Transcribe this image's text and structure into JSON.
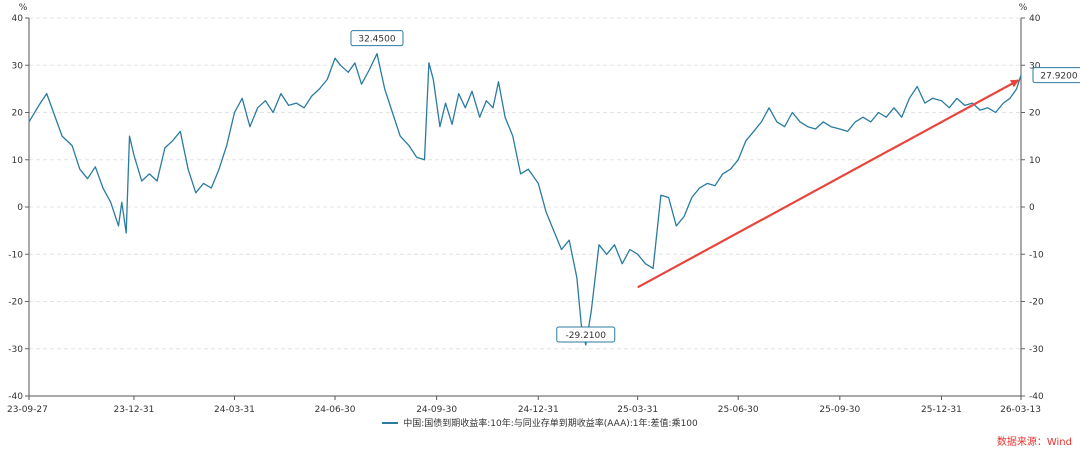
{
  "chart_data": {
    "type": "line",
    "title": "",
    "y_unit_label": "%",
    "ylim": [
      -40,
      40
    ],
    "yticks": [
      -40,
      -30,
      -20,
      -10,
      0,
      10,
      20,
      30,
      40
    ],
    "x_tick_labels": [
      "23-09-27",
      "23-12-31",
      "24-03-31",
      "24-06-30",
      "24-09-30",
      "24-12-31",
      "25-03-31",
      "25-06-30",
      "25-09-30",
      "25-12-31",
      "26-03-13"
    ],
    "x_ticks": [
      "2023-09-27",
      "2023-12-31",
      "2024-03-31",
      "2024-06-30",
      "2024-09-30",
      "2024-12-31",
      "2025-03-31",
      "2025-06-30",
      "2025-09-30",
      "2025-12-31",
      "2026-03-13"
    ],
    "grid": true,
    "legend_position": "bottom",
    "series": [
      {
        "name": "中国:国债到期收益率:10年:与同业存单到期收益率(AAA):1年:差值:乘100",
        "color": "#2a7ba0",
        "points": [
          [
            "2023-09-27",
            18.0
          ],
          [
            "2023-10-06",
            21.5
          ],
          [
            "2023-10-13",
            24.0
          ],
          [
            "2023-10-20",
            19.5
          ],
          [
            "2023-10-27",
            15.0
          ],
          [
            "2023-11-05",
            13.0
          ],
          [
            "2023-11-12",
            8.0
          ],
          [
            "2023-11-19",
            6.0
          ],
          [
            "2023-11-26",
            8.5
          ],
          [
            "2023-12-03",
            4.0
          ],
          [
            "2023-12-10",
            1.0
          ],
          [
            "2023-12-17",
            -4.0
          ],
          [
            "2023-12-20",
            1.0
          ],
          [
            "2023-12-24",
            -5.5
          ],
          [
            "2023-12-27",
            15.0
          ],
          [
            "2023-12-31",
            11.0
          ],
          [
            "2024-01-07",
            5.5
          ],
          [
            "2024-01-14",
            7.0
          ],
          [
            "2024-01-21",
            5.5
          ],
          [
            "2024-01-28",
            12.5
          ],
          [
            "2024-02-04",
            14.0
          ],
          [
            "2024-02-11",
            16.0
          ],
          [
            "2024-02-18",
            8.0
          ],
          [
            "2024-02-25",
            3.0
          ],
          [
            "2024-03-03",
            5.0
          ],
          [
            "2024-03-10",
            4.0
          ],
          [
            "2024-03-17",
            8.0
          ],
          [
            "2024-03-24",
            13.0
          ],
          [
            "2024-03-31",
            20.0
          ],
          [
            "2024-04-07",
            23.0
          ],
          [
            "2024-04-14",
            17.0
          ],
          [
            "2024-04-21",
            21.0
          ],
          [
            "2024-04-28",
            22.5
          ],
          [
            "2024-05-05",
            20.0
          ],
          [
            "2024-05-12",
            24.0
          ],
          [
            "2024-05-19",
            21.5
          ],
          [
            "2024-05-26",
            22.0
          ],
          [
            "2024-06-02",
            21.0
          ],
          [
            "2024-06-09",
            23.5
          ],
          [
            "2024-06-16",
            25.0
          ],
          [
            "2024-06-23",
            27.0
          ],
          [
            "2024-06-30",
            31.5
          ],
          [
            "2024-07-05",
            30.0
          ],
          [
            "2024-07-12",
            28.5
          ],
          [
            "2024-07-18",
            30.5
          ],
          [
            "2024-07-24",
            26.0
          ],
          [
            "2024-07-31",
            29.0
          ],
          [
            "2024-08-07",
            32.45
          ],
          [
            "2024-08-14",
            25.0
          ],
          [
            "2024-08-21",
            20.0
          ],
          [
            "2024-08-28",
            15.0
          ],
          [
            "2024-09-05",
            13.0
          ],
          [
            "2024-09-12",
            10.5
          ],
          [
            "2024-09-19",
            10.0
          ],
          [
            "2024-09-23",
            30.5
          ],
          [
            "2024-09-27",
            27.0
          ],
          [
            "2024-10-03",
            17.0
          ],
          [
            "2024-10-08",
            22.0
          ],
          [
            "2024-10-14",
            17.5
          ],
          [
            "2024-10-20",
            24.0
          ],
          [
            "2024-10-26",
            21.0
          ],
          [
            "2024-11-01",
            24.5
          ],
          [
            "2024-11-08",
            19.0
          ],
          [
            "2024-11-14",
            22.5
          ],
          [
            "2024-11-20",
            21.0
          ],
          [
            "2024-11-25",
            26.5
          ],
          [
            "2024-12-01",
            19.0
          ],
          [
            "2024-12-08",
            15.0
          ],
          [
            "2024-12-15",
            7.0
          ],
          [
            "2024-12-22",
            8.0
          ],
          [
            "2024-12-31",
            5.0
          ],
          [
            "2025-01-07",
            -1.0
          ],
          [
            "2025-01-14",
            -5.0
          ],
          [
            "2025-01-21",
            -9.0
          ],
          [
            "2025-01-28",
            -7.0
          ],
          [
            "2025-02-04",
            -15.0
          ],
          [
            "2025-02-08",
            -25.0
          ],
          [
            "2025-02-12",
            -29.21
          ],
          [
            "2025-02-17",
            -22.0
          ],
          [
            "2025-02-24",
            -8.0
          ],
          [
            "2025-03-03",
            -10.0
          ],
          [
            "2025-03-10",
            -8.0
          ],
          [
            "2025-03-17",
            -12.0
          ],
          [
            "2025-03-24",
            -9.0
          ],
          [
            "2025-03-31",
            -10.0
          ],
          [
            "2025-04-07",
            -12.0
          ],
          [
            "2025-04-14",
            -13.0
          ],
          [
            "2025-04-21",
            2.5
          ],
          [
            "2025-04-28",
            2.0
          ],
          [
            "2025-05-05",
            -4.0
          ],
          [
            "2025-05-12",
            -2.0
          ],
          [
            "2025-05-19",
            2.0
          ],
          [
            "2025-05-26",
            4.0
          ],
          [
            "2025-06-02",
            5.0
          ],
          [
            "2025-06-09",
            4.5
          ],
          [
            "2025-06-16",
            7.0
          ],
          [
            "2025-06-23",
            8.0
          ],
          [
            "2025-06-30",
            10.0
          ],
          [
            "2025-07-07",
            14.0
          ],
          [
            "2025-07-14",
            16.0
          ],
          [
            "2025-07-21",
            18.0
          ],
          [
            "2025-07-28",
            21.0
          ],
          [
            "2025-08-04",
            18.0
          ],
          [
            "2025-08-11",
            17.0
          ],
          [
            "2025-08-18",
            20.0
          ],
          [
            "2025-08-25",
            18.0
          ],
          [
            "2025-09-01",
            17.0
          ],
          [
            "2025-09-08",
            16.5
          ],
          [
            "2025-09-15",
            18.0
          ],
          [
            "2025-09-22",
            17.0
          ],
          [
            "2025-09-30",
            16.5
          ],
          [
            "2025-10-07",
            16.0
          ],
          [
            "2025-10-14",
            18.0
          ],
          [
            "2025-10-21",
            19.0
          ],
          [
            "2025-10-28",
            18.0
          ],
          [
            "2025-11-04",
            20.0
          ],
          [
            "2025-11-11",
            19.0
          ],
          [
            "2025-11-18",
            21.0
          ],
          [
            "2025-11-25",
            19.0
          ],
          [
            "2025-12-02",
            23.0
          ],
          [
            "2025-12-09",
            25.5
          ],
          [
            "2025-12-16",
            22.0
          ],
          [
            "2025-12-23",
            23.0
          ],
          [
            "2025-12-31",
            22.5
          ],
          [
            "2026-01-07",
            21.0
          ],
          [
            "2026-01-14",
            23.0
          ],
          [
            "2026-01-21",
            21.5
          ],
          [
            "2026-01-28",
            22.0
          ],
          [
            "2026-02-04",
            20.5
          ],
          [
            "2026-02-11",
            21.0
          ],
          [
            "2026-02-18",
            20.0
          ],
          [
            "2026-02-25",
            22.0
          ],
          [
            "2026-03-03",
            23.0
          ],
          [
            "2026-03-09",
            25.0
          ],
          [
            "2026-03-13",
            27.92
          ]
        ]
      }
    ],
    "annotations": [
      {
        "label": "32.4500",
        "x": "2024-08-07",
        "y": 32.45,
        "placement": "above"
      },
      {
        "label": "-29.2100",
        "x": "2025-02-12",
        "y": -29.21,
        "placement": "above"
      },
      {
        "label": "27.9200",
        "x": "2026-03-13",
        "y": 27.92,
        "placement": "right"
      }
    ],
    "trend_arrow": {
      "from": {
        "x": "2025-03-31",
        "y": -17.0
      },
      "to": {
        "x": "2026-03-13",
        "y": 27.0
      },
      "color": "#e8453c"
    }
  },
  "source_text": "数据来源：Wind"
}
